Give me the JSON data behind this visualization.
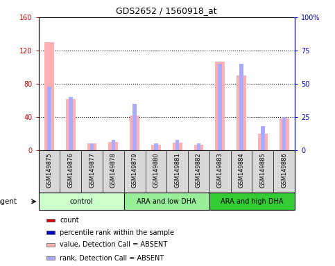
{
  "title": "GDS2652 / 1560918_at",
  "samples": [
    "GSM149875",
    "GSM149876",
    "GSM149877",
    "GSM149878",
    "GSM149879",
    "GSM149880",
    "GSM149881",
    "GSM149882",
    "GSM149883",
    "GSM149884",
    "GSM149885",
    "GSM149886"
  ],
  "groups": [
    {
      "label": "control",
      "indices": [
        0,
        1,
        2,
        3
      ],
      "color": "#ccffcc"
    },
    {
      "label": "ARA and low DHA",
      "indices": [
        4,
        5,
        6,
        7
      ],
      "color": "#99ee99"
    },
    {
      "label": "ARA and high DHA",
      "indices": [
        8,
        9,
        10,
        11
      ],
      "color": "#33cc33"
    }
  ],
  "absent_value_values": [
    130,
    62,
    8,
    10,
    42,
    7,
    9,
    7,
    107,
    90,
    20,
    38
  ],
  "absent_rank_values": [
    48,
    40,
    5,
    8,
    35,
    5,
    8,
    5,
    65,
    65,
    18,
    25
  ],
  "ylim_left": [
    0,
    160
  ],
  "ylim_right": [
    0,
    100
  ],
  "yticks_left": [
    0,
    40,
    80,
    120,
    160
  ],
  "yticks_right": [
    0,
    25,
    50,
    75,
    100
  ],
  "ytick_labels_left": [
    "0",
    "40",
    "80",
    "120",
    "160"
  ],
  "ytick_labels_right": [
    "0",
    "25",
    "50",
    "75",
    "100%"
  ],
  "left_axis_color": "#cc0000",
  "right_axis_color": "#0000cc",
  "color_count": "#cc0000",
  "color_rank": "#0000cc",
  "color_absent_value": "#ffb0b0",
  "color_absent_rank": "#aaaaff",
  "legend_items": [
    {
      "color": "#cc0000",
      "label": "count"
    },
    {
      "color": "#0000cc",
      "label": "percentile rank within the sample"
    },
    {
      "color": "#ffb0b0",
      "label": "value, Detection Call = ABSENT"
    },
    {
      "color": "#aaaaff",
      "label": "rank, Detection Call = ABSENT"
    }
  ],
  "agent_label": "agent",
  "sample_box_bg": "#d8d8d8",
  "plot_bg": "#ffffff",
  "grid_color": "black"
}
